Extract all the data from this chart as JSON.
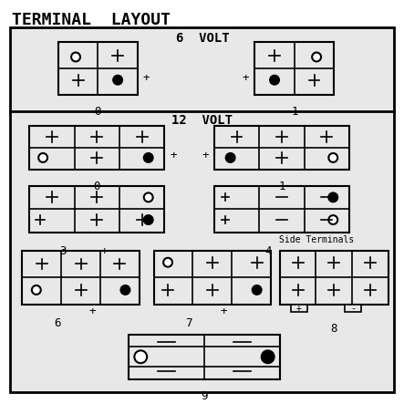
{
  "title": "TERMINAL  LAYOUT",
  "bg_outer": "#e8e8e8",
  "bg_inner": "#e8e8e8",
  "fg": "#000000",
  "section_6v_label": "6  VOLT",
  "section_12v_label": "12  VOLT",
  "side_terminals_label": "Side Terminals",
  "labels": [
    "0",
    "1",
    "0",
    "1",
    "3",
    "4",
    "6",
    "7",
    "8",
    "9"
  ],
  "plus_signs_outside": true
}
